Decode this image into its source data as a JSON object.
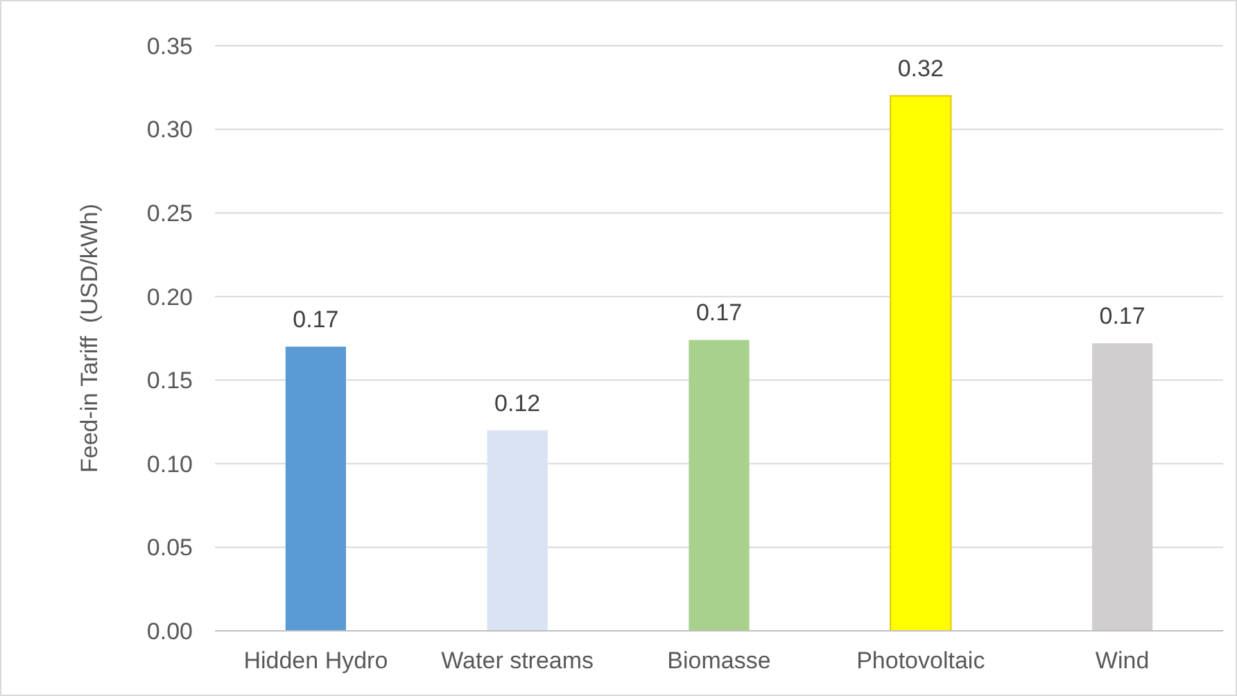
{
  "chart_data": {
    "type": "bar",
    "ylabel": "Feed-in Tariff  (USD/kWh)",
    "categories": [
      "Hidden Hydro",
      "Water streams",
      "Biomasse",
      "Photovoltaic",
      "Wind"
    ],
    "values": [
      0.17,
      0.12,
      0.174,
      0.32,
      0.172
    ],
    "colors": [
      "#5b9bd5",
      "#dae3f3",
      "#a9d18e",
      "#ffff00",
      "#d0cece"
    ],
    "value_labels": [
      "0.17",
      "0.12",
      "0.17",
      "0.32",
      "0.17"
    ],
    "ylim": [
      0,
      0.35
    ],
    "yticks": [
      {
        "value": 0,
        "label": "0.00"
      },
      0.05,
      {
        "value": 0.1,
        "label": "0.10"
      },
      0.15,
      {
        "value": 0.2,
        "label": "0.20"
      },
      0.25,
      {
        "value": 0.3,
        "label": "0.30"
      },
      0.35
    ],
    "grid": "y"
  }
}
